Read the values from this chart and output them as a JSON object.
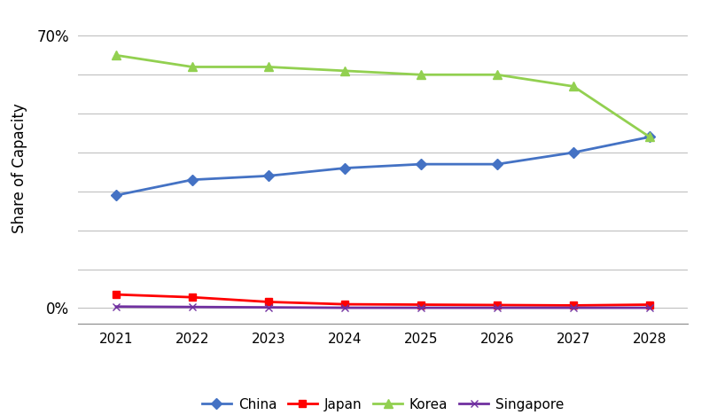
{
  "years": [
    2021,
    2022,
    2023,
    2024,
    2025,
    2026,
    2027,
    2028
  ],
  "china": [
    0.29,
    0.33,
    0.34,
    0.36,
    0.37,
    0.37,
    0.4,
    0.44
  ],
  "japan": [
    0.035,
    0.028,
    0.016,
    0.01,
    0.009,
    0.008,
    0.007,
    0.009
  ],
  "korea": [
    0.65,
    0.62,
    0.62,
    0.61,
    0.6,
    0.6,
    0.57,
    0.44
  ],
  "singapore": [
    0.004,
    0.003,
    0.002,
    0.001,
    0.001,
    0.001,
    0.001,
    0.001
  ],
  "china_color": "#4472C4",
  "japan_color": "#FF0000",
  "korea_color": "#92D050",
  "singapore_color": "#7030A0",
  "ylabel": "Share of Capacity",
  "ylim": [
    -0.04,
    0.76
  ],
  "yticks": [
    0.0,
    0.1,
    0.2,
    0.3,
    0.4,
    0.5,
    0.6,
    0.7
  ],
  "background_color": "#FFFFFF",
  "grid_color": "#C0C0C0",
  "legend_entries": [
    "China",
    "Japan",
    "Korea",
    "Singapore"
  ]
}
